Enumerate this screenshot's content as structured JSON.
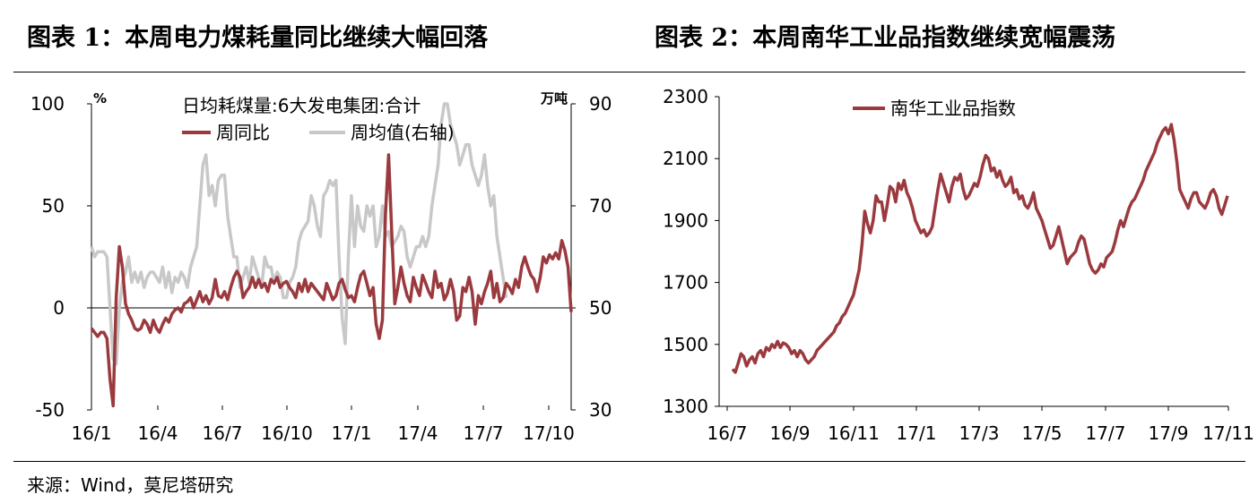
{
  "header": {
    "chart1_title": "图表 1：本周电力煤耗量同比继续大幅回落",
    "chart2_title": "图表 2：本周南华工业品指数继续宽幅震荡"
  },
  "footer": {
    "source": "来源：Wind，莫尼塔研究"
  },
  "colors": {
    "primary": "#9b3a3e",
    "secondary": "#c8c8c8",
    "axis": "#000000"
  },
  "chart_data": [
    {
      "type": "line",
      "legend_title": "日均耗煤量:6大发电集团:合计",
      "left_unit": "%",
      "right_unit": "万吨",
      "x_ticks": [
        "16/1",
        "16/4",
        "16/7",
        "16/10",
        "17/1",
        "17/4",
        "17/7",
        "17/10"
      ],
      "ylim_left": [
        -50,
        100
      ],
      "yticks_left": [
        -50,
        0,
        50,
        100
      ],
      "ylim_right": [
        30,
        90
      ],
      "yticks_right": [
        30,
        50,
        70,
        90
      ],
      "series": [
        {
          "name": "周同比",
          "axis": "left",
          "values": [
            -10,
            -12,
            -14,
            -12,
            -12,
            -15,
            -35,
            -48,
            5,
            30,
            20,
            2,
            -3,
            -6,
            -10,
            -11,
            -10,
            -6,
            -8,
            -12,
            -6,
            -10,
            -12,
            -8,
            -5,
            -7,
            -3,
            -1,
            0,
            -2,
            2,
            3,
            5,
            0,
            4,
            8,
            3,
            6,
            2,
            5,
            14,
            6,
            5,
            8,
            4,
            10,
            15,
            18,
            15,
            5,
            8,
            10,
            15,
            10,
            14,
            10,
            12,
            8,
            14,
            12,
            15,
            10,
            12,
            13,
            10,
            8,
            5,
            12,
            8,
            14,
            8,
            12,
            10,
            8,
            6,
            4,
            12,
            8,
            4,
            6,
            12,
            14,
            9,
            5,
            6,
            3,
            10,
            16,
            18,
            12,
            6,
            10,
            -8,
            -15,
            -6,
            46,
            75,
            38,
            2,
            10,
            20,
            12,
            6,
            3,
            15,
            10,
            6,
            16,
            12,
            8,
            5,
            18,
            10,
            12,
            4,
            7,
            14,
            8,
            -6,
            -4,
            10,
            8,
            15,
            8,
            -8,
            6,
            2,
            8,
            12,
            18,
            5,
            12,
            3,
            5,
            12,
            10,
            7,
            14,
            10,
            20,
            25,
            20,
            16,
            14,
            8,
            15,
            25,
            22,
            26,
            24,
            27,
            24,
            33,
            28,
            20,
            -2
          ]
        },
        {
          "name": "周均值(右轴)",
          "axis": "right",
          "values": [
            62,
            60,
            61,
            61,
            61,
            60,
            50,
            40,
            39,
            50,
            55,
            57,
            60,
            55,
            57,
            55,
            57,
            54,
            56,
            57,
            57,
            56,
            55,
            58,
            54,
            57,
            53,
            56,
            55,
            57,
            56,
            54,
            58,
            60,
            62,
            70,
            78,
            80,
            72,
            74,
            70,
            75,
            76,
            76,
            68,
            64,
            60,
            60,
            54,
            56,
            58,
            55,
            60,
            58,
            56,
            54,
            60,
            58,
            58,
            55,
            57,
            56,
            52,
            52,
            55,
            56,
            58,
            63,
            65,
            66,
            67,
            72,
            70,
            66,
            64,
            72,
            73,
            75,
            74,
            75,
            60,
            48,
            43,
            60,
            72,
            62,
            70,
            66,
            65,
            70,
            68,
            70,
            62,
            64,
            70,
            64,
            65,
            62,
            63,
            64,
            66,
            65,
            60,
            58,
            60,
            62,
            62,
            64,
            62,
            64,
            70,
            74,
            78,
            86,
            90,
            90,
            86,
            84,
            82,
            78,
            80,
            82,
            82,
            78,
            76,
            74,
            76,
            80,
            74,
            70,
            72,
            64,
            60,
            56,
            52
          ]
        }
      ]
    },
    {
      "type": "line",
      "x_ticks": [
        "16/7",
        "16/9",
        "16/11",
        "17/1",
        "17/3",
        "17/5",
        "17/7",
        "17/9",
        "17/11"
      ],
      "ylim": [
        1300,
        2300
      ],
      "yticks": [
        1300,
        1500,
        1700,
        1900,
        2100,
        2300
      ],
      "series": [
        {
          "name": "南华工业品指数",
          "values": [
            1420,
            1410,
            1440,
            1470,
            1460,
            1430,
            1450,
            1460,
            1440,
            1470,
            1480,
            1460,
            1490,
            1480,
            1500,
            1490,
            1510,
            1490,
            1505,
            1500,
            1490,
            1470,
            1480,
            1460,
            1480,
            1470,
            1450,
            1440,
            1450,
            1460,
            1480,
            1490,
            1500,
            1510,
            1520,
            1530,
            1540,
            1560,
            1570,
            1590,
            1600,
            1620,
            1640,
            1660,
            1700,
            1740,
            1820,
            1930,
            1890,
            1860,
            1900,
            1980,
            1960,
            1960,
            1900,
            1950,
            2010,
            2000,
            1960,
            2020,
            2000,
            2030,
            1990,
            1970,
            1940,
            1900,
            1880,
            1860,
            1870,
            1850,
            1860,
            1880,
            1940,
            2000,
            2050,
            2020,
            1990,
            1960,
            2010,
            2040,
            2030,
            2050,
            2000,
            1970,
            1980,
            2000,
            2020,
            2010,
            2040,
            2080,
            2110,
            2100,
            2060,
            2070,
            2040,
            2060,
            2030,
            2010,
            2020,
            2040,
            1990,
            2000,
            1970,
            1980,
            1950,
            1940,
            1960,
            1990,
            1940,
            1920,
            1900,
            1870,
            1840,
            1810,
            1820,
            1850,
            1880,
            1840,
            1800,
            1760,
            1780,
            1790,
            1800,
            1830,
            1850,
            1840,
            1800,
            1760,
            1740,
            1730,
            1740,
            1760,
            1750,
            1780,
            1790,
            1800,
            1830,
            1870,
            1900,
            1880,
            1910,
            1940,
            1960,
            1970,
            1990,
            2010,
            2030,
            2060,
            2080,
            2100,
            2120,
            2150,
            2170,
            2190,
            2200,
            2180,
            2210,
            2160,
            2090,
            2000,
            1980,
            1960,
            1940,
            1970,
            1990,
            1990,
            1960,
            1950,
            1940,
            1960,
            1990,
            2000,
            1980,
            1940,
            1920,
            1950,
            1980
          ]
        }
      ]
    }
  ]
}
